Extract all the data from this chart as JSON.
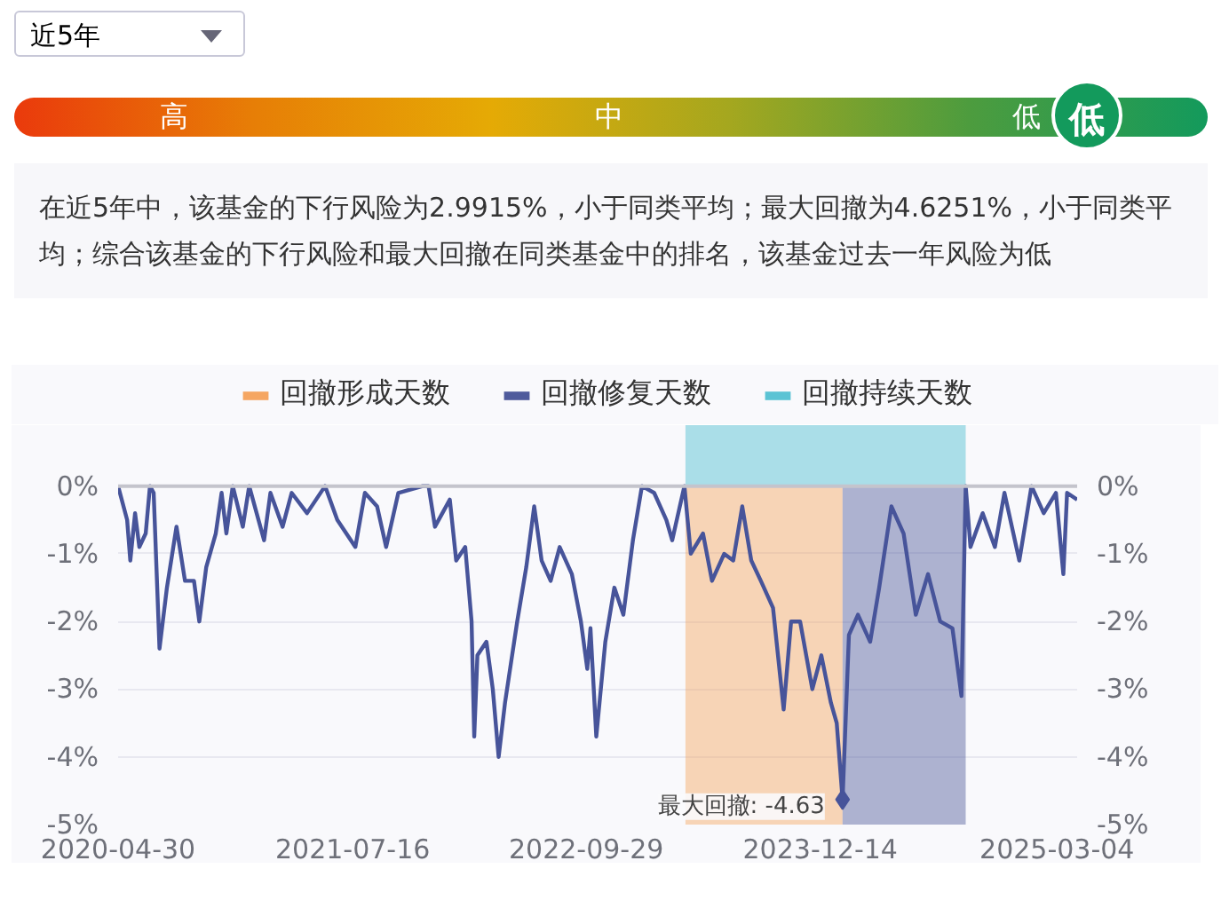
{
  "chart_data": {
    "type": "line",
    "x": [
      "2020-04-30",
      "2020-05-17",
      "2020-05-23",
      "2020-06-01",
      "2020-06-09",
      "2020-06-21",
      "2020-06-29",
      "2020-07-06",
      "2020-07-17",
      "2020-07-31",
      "2020-08-18",
      "2020-09-03",
      "2020-09-20",
      "2020-09-30",
      "2020-10-13",
      "2020-10-31",
      "2020-11-11",
      "2020-11-20",
      "2020-12-02",
      "2020-12-21",
      "2021-01-02",
      "2021-01-30",
      "2021-02-11",
      "2021-03-06",
      "2021-03-23",
      "2021-04-21",
      "2021-05-25",
      "2021-06-17",
      "2021-07-21",
      "2021-08-08",
      "2021-08-31",
      "2021-09-17",
      "2021-10-10",
      "2021-11-25",
      "2021-12-06",
      "2021-12-18",
      "2022-01-15",
      "2022-01-27",
      "2022-02-13",
      "2022-02-25",
      "2022-03-02",
      "2022-03-08",
      "2022-03-25",
      "2022-04-06",
      "2022-04-17",
      "2022-04-29",
      "2022-05-22",
      "2022-06-08",
      "2022-06-23",
      "2022-07-07",
      "2022-07-24",
      "2022-08-10",
      "2022-09-02",
      "2022-09-19",
      "2022-10-01",
      "2022-10-07",
      "2022-10-18",
      "2022-11-04",
      "2022-11-21",
      "2022-12-08",
      "2022-12-26",
      "2023-01-12",
      "2023-02-04",
      "2023-02-27",
      "2023-03-10",
      "2023-04-02",
      "2023-04-14",
      "2023-05-07",
      "2023-05-24",
      "2023-06-16",
      "2023-07-03",
      "2023-07-20",
      "2023-08-06",
      "2023-08-24",
      "2023-09-16",
      "2023-10-06",
      "2023-10-20",
      "2023-11-06",
      "2023-11-29",
      "2023-12-16",
      "2024-01-03",
      "2024-01-14",
      "2024-01-25",
      "2024-02-06",
      "2024-02-23",
      "2024-03-17",
      "2024-04-03",
      "2024-04-26",
      "2024-05-19",
      "2024-06-11",
      "2024-07-04",
      "2024-07-27",
      "2024-08-19",
      "2024-09-05",
      "2024-09-13",
      "2024-09-22",
      "2024-10-15",
      "2024-11-07",
      "2024-11-25",
      "2024-12-23",
      "2025-01-15",
      "2025-02-07",
      "2025-03-02",
      "2025-03-16",
      "2025-03-23",
      "2025-04-11"
    ],
    "series": [
      {
        "color": "#47549a",
        "values": [
          0,
          -0.5,
          -1.1,
          -0.4,
          -0.9,
          -0.7,
          0,
          -0.1,
          -2.4,
          -1.5,
          -0.6,
          -1.4,
          -1.4,
          -2.0,
          -1.2,
          -0.7,
          -0.1,
          -0.7,
          0,
          -0.6,
          0,
          -0.8,
          -0.1,
          -0.6,
          -0.1,
          -0.4,
          0,
          -0.5,
          -0.9,
          -0.1,
          -0.3,
          -0.9,
          -0.1,
          0,
          0,
          -0.6,
          -0.2,
          -1.1,
          -0.9,
          -2.0,
          -3.7,
          -2.5,
          -2.3,
          -3.0,
          -4.0,
          -3.2,
          -2.0,
          -1.2,
          -0.3,
          -1.1,
          -1.4,
          -0.9,
          -1.3,
          -2.0,
          -2.7,
          -2.1,
          -3.7,
          -2.3,
          -1.5,
          -1.9,
          -0.8,
          0,
          -0.1,
          -0.5,
          -0.8,
          0,
          -1.0,
          -0.7,
          -1.4,
          -1.0,
          -1.1,
          -0.3,
          -1.1,
          -1.4,
          -1.8,
          -3.3,
          -2.0,
          -2.0,
          -3.0,
          -2.5,
          -3.2,
          -3.5,
          -4.63,
          -2.2,
          -1.9,
          -2.3,
          -1.5,
          -0.3,
          -0.7,
          -1.9,
          -1.3,
          -2.0,
          -2.1,
          -3.1,
          0,
          -0.9,
          -0.4,
          -0.9,
          -0.1,
          -1.1,
          0,
          -0.4,
          -0.1,
          -1.3,
          -0.1,
          -0.2
        ]
      }
    ],
    "xlim": [
      "2020-04-30",
      "2025-04-11"
    ],
    "xticks": [
      "2020-04-30",
      "2021-07-16",
      "2022-09-29",
      "2023-12-14",
      "2025-03-04"
    ],
    "ylim": [
      -5,
      0.9
    ],
    "yticks": [
      {
        "value": 0,
        "label": "0%"
      },
      {
        "value": -1,
        "label": "-1%"
      },
      {
        "value": -2,
        "label": "-2%"
      },
      {
        "value": -3,
        "label": "-3%"
      },
      {
        "value": -4,
        "label": "-4%"
      },
      {
        "value": -5,
        "label": "-5%"
      }
    ],
    "y2lim": [
      -5,
      0.9
    ],
    "y2ticks": [
      {
        "value": 0,
        "label": "0%"
      },
      {
        "value": -1,
        "label": "-1%"
      },
      {
        "value": -2,
        "label": "-2%"
      },
      {
        "value": -3,
        "label": "-3%"
      },
      {
        "value": -4,
        "label": "-4%"
      },
      {
        "value": -5,
        "label": "-5%"
      }
    ],
    "bands": [
      {
        "axis": "x",
        "from": "2023-04-04",
        "to": "2024-01-25",
        "label": "回撤形成天数",
        "color": "#f5a662"
      },
      {
        "axis": "x",
        "from": "2024-01-25",
        "to": "2024-09-13",
        "label": "回撤修复天数",
        "color": "#4f5b9c"
      },
      {
        "axis": "x",
        "from": "2023-04-04",
        "to": "2024-09-13",
        "label": "回撤持续天数",
        "color": "#5bc3d4"
      }
    ],
    "ref_lines": [
      {
        "axis": "y",
        "value": 0,
        "color": "#c4c4cc"
      }
    ],
    "annotations": [
      "近5年",
      "高",
      "中",
      "低",
      "低",
      "在近5年中，该基金的下行风险为2.9915%，小于同类平均；最大回撤为4.6251%，小于同类平均；综合该基金的下行风险和最大回撤在同类基金中的排名，该基金过去一年风险为低",
      {
        "text": "最大回撤: -4.63",
        "x": "2024-01-25",
        "y": -4.63
      }
    ],
    "grid": "y",
    "legend": "top",
    "marker": "none",
    "line_style": "solid"
  }
}
